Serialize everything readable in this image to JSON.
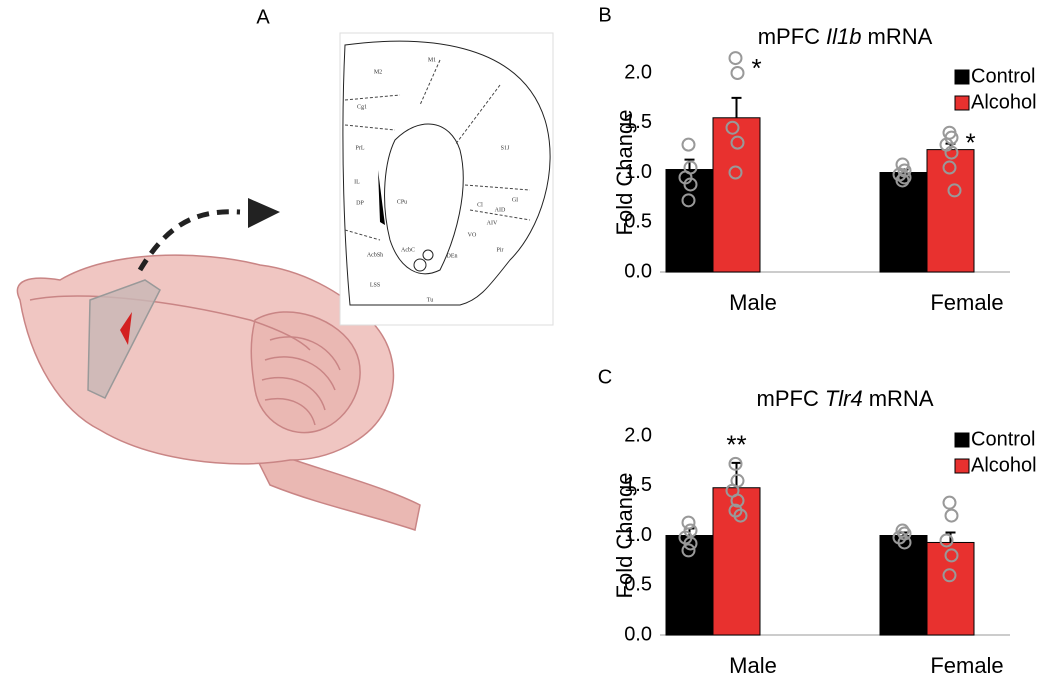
{
  "panel_labels": [
    "A",
    "B",
    "C"
  ],
  "atlas_labels": [
    "M2",
    "M1",
    "Cg1",
    "PrL",
    "IL",
    "DP",
    "CPu",
    "S1J",
    "Cl",
    "GI",
    "AID",
    "AIV",
    "VO",
    "DEn",
    "Pir",
    "AcbC",
    "AcbSh",
    "LSS",
    "Tu"
  ],
  "chart_data": [
    {
      "type": "bar",
      "title": [
        "mPFC",
        "Il1b",
        "mRNA"
      ],
      "y_label": "Fold Change",
      "categories": [
        "Male",
        "Female"
      ],
      "ylim": [
        0,
        2
      ],
      "yticks": [
        {
          "value": 0,
          "label": "0.0"
        },
        {
          "value": 0.5,
          "label": "0.5"
        },
        {
          "value": 1,
          "label": "1.0"
        },
        {
          "value": 1.5,
          "label": "1.5"
        },
        {
          "value": 2,
          "label": "2.0"
        }
      ],
      "legend": "top-right",
      "series": [
        {
          "name": "Control",
          "color": "#000000",
          "values": [
            1.03,
            1.0
          ],
          "errors": [
            0.1,
            0.03
          ],
          "points": [
            [
              1.28,
              1.05,
              0.95,
              0.88,
              0.72
            ],
            [
              1.08,
              1.02,
              0.98,
              0.95,
              0.92
            ]
          ],
          "labels": [
            null,
            null
          ]
        },
        {
          "name": "Alcohol",
          "color": "#e8312f",
          "values": [
            1.55,
            1.23
          ],
          "errors": [
            0.2,
            0.06
          ],
          "points": [
            [
              2.15,
              2.0,
              1.45,
              1.3,
              1.0
            ],
            [
              1.4,
              1.35,
              1.28,
              1.2,
              1.05,
              0.82
            ]
          ],
          "labels": [
            "*",
            "*"
          ]
        }
      ]
    },
    {
      "type": "bar",
      "title": [
        "mPFC",
        "Tlr4",
        "mRNA"
      ],
      "y_label": "Fold Change",
      "categories": [
        "Male",
        "Female"
      ],
      "ylim": [
        0,
        2
      ],
      "yticks": [
        {
          "value": 0,
          "label": "0.0"
        },
        {
          "value": 0.5,
          "label": "0.5"
        },
        {
          "value": 1,
          "label": "1.0"
        },
        {
          "value": 1.5,
          "label": "1.5"
        },
        {
          "value": 2,
          "label": "2.0"
        }
      ],
      "legend": "top-right",
      "series": [
        {
          "name": "Control",
          "color": "#000000",
          "values": [
            1.0,
            1.0
          ],
          "errors": [
            0.07,
            0.03
          ],
          "points": [
            [
              1.13,
              1.05,
              0.98,
              0.92,
              0.85
            ],
            [
              1.05,
              1.02,
              0.98,
              0.93
            ]
          ],
          "labels": [
            null,
            null
          ]
        },
        {
          "name": "Alcohol",
          "color": "#e8312f",
          "values": [
            1.48,
            0.93
          ],
          "errors": [
            0.25,
            0.1
          ],
          "points": [
            [
              1.72,
              1.55,
              1.45,
              1.35,
              1.25,
              1.2
            ],
            [
              1.33,
              1.2,
              0.95,
              0.8,
              0.6
            ]
          ],
          "labels": [
            "**",
            null
          ]
        }
      ]
    }
  ]
}
